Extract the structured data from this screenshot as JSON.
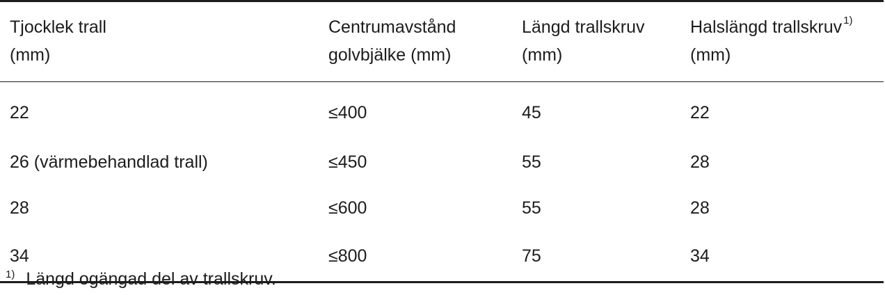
{
  "table": {
    "headers": [
      {
        "line1": "Tjocklek trall",
        "line2": "(mm)",
        "sup": ""
      },
      {
        "line1": "Centrumavstånd",
        "line2": "golvbjälke (mm)",
        "sup": ""
      },
      {
        "line1": "Längd trallskruv",
        "line2": "(mm)",
        "sup": ""
      },
      {
        "line1": "Halslängd trallskruv",
        "line2": "(mm)",
        "sup": "1)"
      }
    ],
    "rows": [
      [
        "22",
        "≤400",
        "45",
        "22"
      ],
      [
        "26 (värmebehandlad trall)",
        "≤450",
        "55",
        "28"
      ],
      [
        "28",
        "≤600",
        "55",
        "28"
      ],
      [
        "34",
        "≤800",
        "75",
        "34"
      ]
    ]
  },
  "footnote": {
    "mark": "1)",
    "text": "Längd ogängad del av trallskruv."
  }
}
